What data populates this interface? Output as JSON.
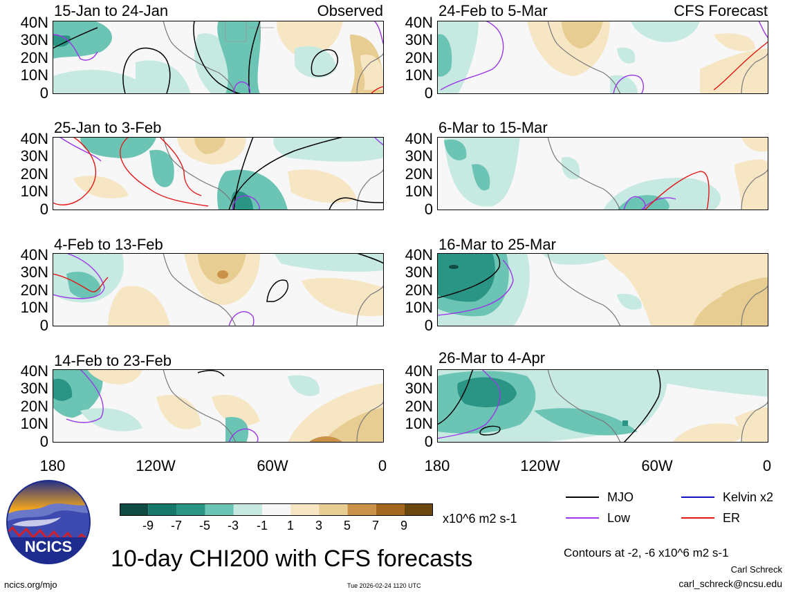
{
  "colors": {
    "neg9": "#0f4a43",
    "neg7": "#16776b",
    "neg5": "#2a9485",
    "neg3": "#6cc4b4",
    "neg1": "#c6eae2",
    "zero": "#f7f7f7",
    "pos1": "#f6e6c4",
    "pos3": "#e8cd92",
    "pos5": "#c99248",
    "pos7": "#a46720",
    "pos9": "#6b4710",
    "mjo": "#000000",
    "low": "#9b36e8",
    "kelvin": "#1010c0",
    "er": "#e21414",
    "land": "#777777"
  },
  "left_panels": [
    {
      "title": "15-Jan to 24-Jan",
      "label": "Observed"
    },
    {
      "title": "25-Jan to 3-Feb",
      "label": ""
    },
    {
      "title": "4-Feb to 13-Feb",
      "label": ""
    },
    {
      "title": "14-Feb to 23-Feb",
      "label": ""
    }
  ],
  "right_panels": [
    {
      "title": "24-Feb to 5-Mar",
      "label": "CFS Forecast"
    },
    {
      "title": "6-Mar to 15-Mar",
      "label": ""
    },
    {
      "title": "16-Mar to 25-Mar",
      "label": ""
    },
    {
      "title": "26-Mar to 4-Apr",
      "label": ""
    }
  ],
  "lat_ticks": [
    "40N",
    "30N",
    "20N",
    "10N",
    "0"
  ],
  "lon_ticks": [
    "180",
    "120W",
    "60W",
    "0"
  ],
  "colorbar": {
    "labels": [
      "-9",
      "-7",
      "-5",
      "-3",
      "-1",
      "1",
      "3",
      "5",
      "7",
      "9"
    ],
    "units": "x10^6 m2 s-1"
  },
  "legend": {
    "mjo": "MJO",
    "low": "Low",
    "kelvin": "Kelvin x2",
    "er": "ER"
  },
  "logo_text": "NCICS",
  "main_title": "10-day CHI200 with CFS forecasts",
  "contours_note": "Contours at -2, -6 x10^6 m2 s-1",
  "author": "Carl Schreck",
  "email": "carl_schreck@ncsu.edu",
  "site": "ncics.org/mjo",
  "timestamp": "Tue 2026-02-24 1120 UTC"
}
